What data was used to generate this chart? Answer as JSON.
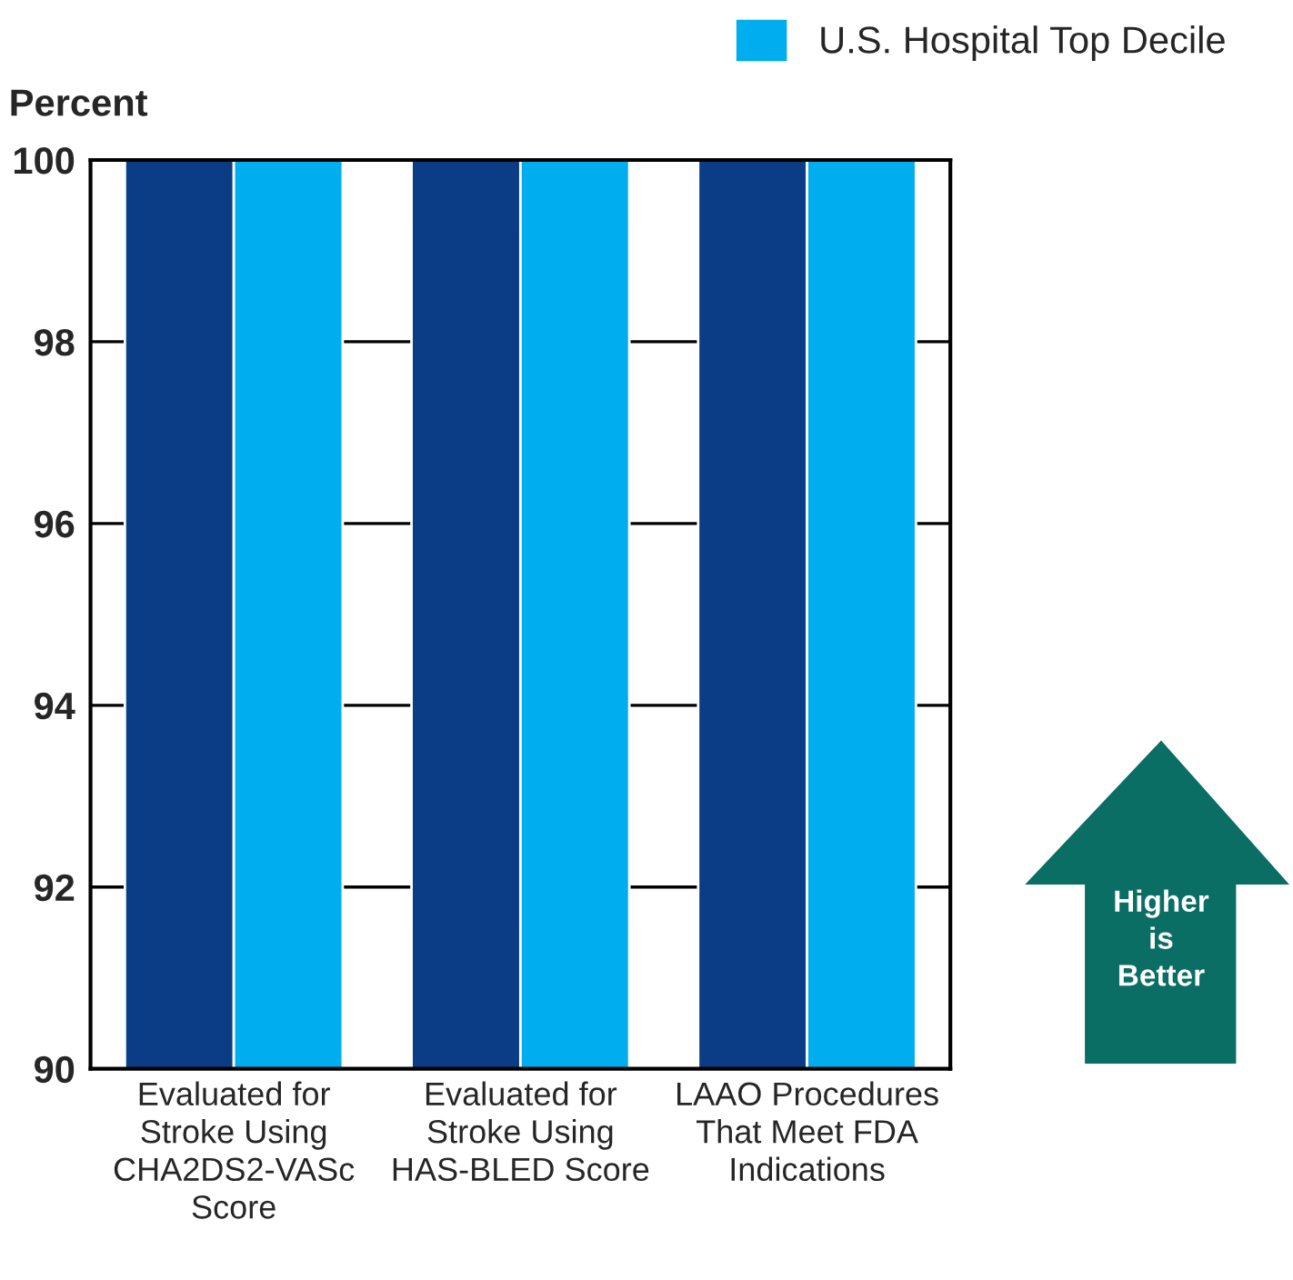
{
  "chart_data": {
    "type": "bar",
    "ylabel": "Percent",
    "categories": [
      "Evaluated for\nStroke Using\nCHA2DS2-VASc\nScore",
      "Evaluated for\nStroke Using\nHAS-BLED Score",
      "LAAO Procedures\nThat Meet FDA\nIndications"
    ],
    "series": [
      {
        "color": "#0a3d86",
        "values": [
          100,
          100,
          100
        ]
      },
      {
        "name": "U.S. Hospital Top Decile",
        "color": "#00aeef",
        "values": [
          100,
          100,
          100
        ]
      }
    ],
    "ylim": [
      90,
      100
    ],
    "yticks": [
      90,
      92,
      94,
      96,
      98,
      100
    ],
    "grid": "y",
    "legend": "top right",
    "annotations": [
      "Higher\nis\nBetter"
    ]
  }
}
